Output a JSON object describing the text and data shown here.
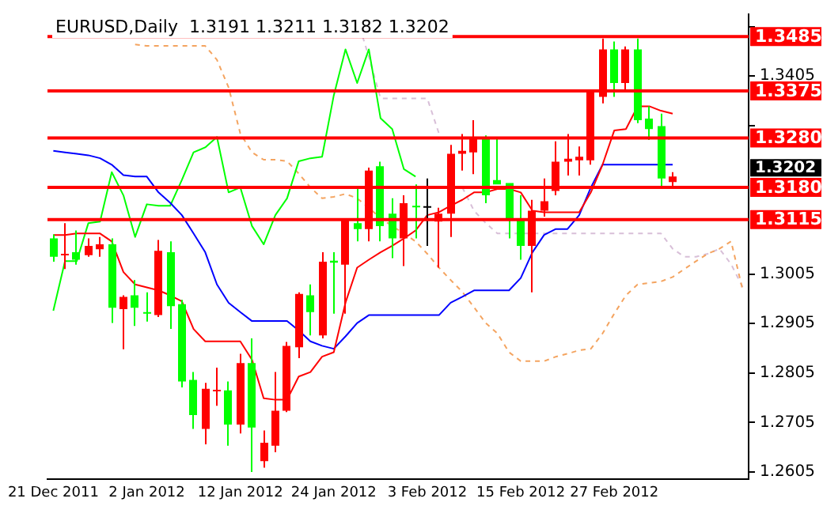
{
  "chart_data": {
    "type": "candlestick",
    "title": "EURUSD,Daily  1.3191 1.3211 1.3182 1.3202",
    "categories": [
      "21 Dec 2011",
      null,
      null,
      null,
      null,
      null,
      null,
      null,
      "2 Jan 2012",
      null,
      null,
      null,
      null,
      null,
      null,
      null,
      "12 Jan 2012",
      null,
      null,
      null,
      null,
      null,
      null,
      null,
      "24 Jan 2012",
      null,
      null,
      null,
      null,
      null,
      null,
      null,
      "3 Feb 2012",
      null,
      null,
      null,
      null,
      null,
      null,
      null,
      "15 Feb 2012",
      null,
      null,
      null,
      null,
      null,
      null,
      null,
      "27 Feb 2012",
      null,
      null,
      null,
      null,
      null,
      null,
      null,
      null,
      null,
      null,
      null
    ],
    "ohlc": [
      [
        1.3077,
        1.3085,
        1.303,
        1.304
      ],
      [
        1.3043,
        1.3108,
        1.3015,
        1.3046
      ],
      [
        1.3049,
        1.3093,
        1.3024,
        1.3034
      ],
      [
        1.3043,
        1.3077,
        1.304,
        1.3062
      ],
      [
        1.3055,
        1.308,
        1.304,
        1.3065
      ],
      [
        1.3065,
        1.3077,
        1.2906,
        1.2937
      ],
      [
        1.2934,
        1.2962,
        1.2853,
        1.2959
      ],
      [
        1.2962,
        1.2993,
        1.29,
        1.2937
      ],
      [
        1.2928,
        1.2968,
        1.2909,
        1.2925
      ],
      [
        1.2922,
        1.3074,
        1.2918,
        1.3052
      ],
      [
        1.3049,
        1.3071,
        1.2894,
        1.294
      ],
      [
        1.2944,
        1.2953,
        1.2776,
        1.2788
      ],
      [
        1.2791,
        1.2807,
        1.2692,
        1.272
      ],
      [
        1.2692,
        1.2785,
        1.2661,
        1.2773
      ],
      [
        1.2768,
        1.2816,
        1.2739,
        1.2771
      ],
      [
        1.277,
        1.2788,
        1.2658,
        1.2701
      ],
      [
        1.2701,
        1.2844,
        1.2683,
        1.2825
      ],
      [
        1.2825,
        1.2875,
        1.2605,
        1.2695
      ],
      [
        1.2627,
        1.2689,
        1.2614,
        1.2664
      ],
      [
        1.2658,
        1.2807,
        1.2645,
        1.2729
      ],
      [
        1.2729,
        1.2868,
        1.2726,
        1.286
      ],
      [
        1.2857,
        1.2968,
        1.2835,
        1.2965
      ],
      [
        1.2962,
        1.2984,
        1.2881,
        1.2928
      ],
      [
        1.2881,
        1.3049,
        1.2875,
        1.303
      ],
      [
        1.3032,
        1.3049,
        1.2925,
        1.3028
      ],
      [
        1.3024,
        1.3114,
        1.2925,
        1.3114
      ],
      [
        1.3108,
        1.318,
        1.3071,
        1.3096
      ],
      [
        1.3096,
        1.322,
        1.3071,
        1.3214
      ],
      [
        1.3223,
        1.3232,
        1.3071,
        1.3102
      ],
      [
        1.3127,
        1.3158,
        1.3037,
        1.3077
      ],
      [
        1.3077,
        1.3164,
        1.3021,
        1.3148
      ],
      [
        1.3143,
        1.3186,
        1.3077,
        1.314
      ],
      [
        1.3142,
        1.3198,
        1.3062,
        1.3142
      ],
      [
        1.3111,
        1.3139,
        1.3018,
        1.3127
      ],
      [
        1.3127,
        1.3266,
        1.308,
        1.3248
      ],
      [
        1.3248,
        1.3288,
        1.3214,
        1.3254
      ],
      [
        1.3251,
        1.3316,
        1.3207,
        1.3282
      ],
      [
        1.3279,
        1.3285,
        1.3148,
        1.3164
      ],
      [
        1.3195,
        1.3282,
        1.3186,
        1.3186
      ],
      [
        1.3189,
        1.3189,
        1.3077,
        1.3114
      ],
      [
        1.3114,
        1.3164,
        1.3034,
        1.3062
      ],
      [
        1.3062,
        1.3155,
        1.2968,
        1.3133
      ],
      [
        1.3133,
        1.3198,
        1.3121,
        1.3152
      ],
      [
        1.3173,
        1.3273,
        1.3164,
        1.3232
      ],
      [
        1.3232,
        1.3288,
        1.3204,
        1.3238
      ],
      [
        1.3235,
        1.3263,
        1.3204,
        1.3242
      ],
      [
        1.3235,
        1.3372,
        1.3226,
        1.3372
      ],
      [
        1.3363,
        1.3481,
        1.335,
        1.3459
      ],
      [
        1.3459,
        1.3475,
        1.3363,
        1.3391
      ],
      [
        1.3391,
        1.3465,
        1.3378,
        1.3459
      ],
      [
        1.3459,
        1.3481,
        1.331,
        1.3316
      ],
      [
        1.3319,
        1.3344,
        1.3276,
        1.3298
      ],
      [
        1.3304,
        1.3329,
        1.318,
        1.3198
      ],
      [
        1.3191,
        1.3211,
        1.3182,
        1.3202
      ],
      null,
      null,
      null,
      null,
      null,
      null
    ],
    "colors": [
      "#00ff00",
      "#ff0000",
      "#00ff00",
      "#ff0000",
      "#ff0000",
      "#00ff00",
      "#ff0000",
      "#00ff00",
      "#00ff00",
      "#ff0000",
      "#00ff00",
      "#00ff00",
      "#00ff00",
      "#ff0000",
      "#ff0000",
      "#00ff00",
      "#ff0000",
      "#00ff00",
      "#ff0000",
      "#ff0000",
      "#ff0000",
      "#ff0000",
      "#00ff00",
      "#ff0000",
      "#00ff00",
      "#ff0000",
      "#00ff00",
      "#ff0000",
      "#00ff00",
      "#00ff00",
      "#ff0000",
      "#00ff00",
      "#000000",
      "#ff0000",
      "#ff0000",
      "#ff0000",
      "#ff0000",
      "#00ff00",
      "#00ff00",
      "#00ff00",
      "#00ff00",
      "#ff0000",
      "#ff0000",
      "#ff0000",
      "#ff0000",
      "#ff0000",
      "#ff0000",
      "#ff0000",
      "#00ff00",
      "#ff0000",
      "#00ff00",
      "#00ff00",
      "#00ff00",
      "#ff0000",
      null,
      null,
      null,
      null,
      null,
      null
    ],
    "series": [
      {
        "type": "line",
        "color": "#ff0000",
        "values": [
          1.3084,
          1.3084,
          1.3087,
          1.3087,
          1.3087,
          1.3071,
          1.3009,
          1.2984,
          1.2978,
          1.2972,
          1.2962,
          1.295,
          1.2894,
          1.2869,
          1.2869,
          1.2869,
          1.2869,
          1.2832,
          1.2754,
          1.2751,
          1.2751,
          1.2798,
          1.2807,
          1.2838,
          1.2847,
          1.2947,
          1.3018,
          1.3034,
          1.3049,
          1.3062,
          1.3077,
          1.3093,
          1.3124,
          1.313,
          1.3143,
          1.3155,
          1.317,
          1.317,
          1.3177,
          1.3177,
          1.317,
          1.3133,
          1.313,
          1.313,
          1.313,
          1.313,
          1.317,
          1.3226,
          1.3295,
          1.3298,
          1.3344,
          1.3344,
          1.3335,
          1.3329,
          null,
          null,
          null,
          null,
          null,
          null
        ]
      },
      {
        "type": "line",
        "color": "#0000ff",
        "values": [
          1.3254,
          1.3251,
          1.3248,
          1.3245,
          1.3239,
          1.3226,
          1.3205,
          1.3202,
          1.3202,
          1.317,
          1.3149,
          1.3124,
          1.3087,
          1.3049,
          1.2984,
          1.2947,
          1.2928,
          1.291,
          1.291,
          1.291,
          1.291,
          1.2891,
          1.2869,
          1.286,
          1.2854,
          1.2879,
          1.2906,
          1.2922,
          1.2922,
          1.2922,
          1.2922,
          1.2922,
          1.2922,
          1.2922,
          1.2947,
          1.2959,
          1.2972,
          1.2972,
          1.2972,
          1.2972,
          1.2997,
          1.3049,
          1.3084,
          1.3096,
          1.3096,
          1.3124,
          1.318,
          1.3226,
          1.3226,
          1.3226,
          1.3226,
          1.3226,
          1.3226,
          1.3226,
          null,
          null,
          null,
          null,
          null,
          null
        ]
      },
      {
        "type": "line",
        "color": "#00ff00",
        "values": [
          1.2931,
          1.3031,
          1.3031,
          1.3108,
          1.3111,
          1.3211,
          1.3164,
          1.308,
          1.3146,
          1.3143,
          1.3143,
          1.3195,
          1.3251,
          1.3261,
          1.3282,
          1.317,
          1.318,
          1.3102,
          1.3065,
          1.3124,
          1.3158,
          1.3233,
          1.3239,
          1.3242,
          1.3366,
          1.3459,
          1.3391,
          1.3459,
          1.332,
          1.3298,
          1.3217,
          1.3202,
          null,
          null,
          null,
          null,
          null,
          null,
          null,
          null,
          null,
          null,
          null,
          null,
          null,
          null,
          null,
          null,
          null,
          null,
          null,
          null,
          null,
          null,
          null,
          null,
          null,
          null,
          null,
          null
        ]
      },
      {
        "type": "line",
        "color": "#f4a460",
        "line_style": "dashed",
        "values": [
          null,
          null,
          null,
          null,
          null,
          null,
          null,
          1.3469,
          1.3466,
          1.3466,
          1.3466,
          1.3466,
          1.3466,
          1.3466,
          1.3438,
          1.3382,
          1.3289,
          1.3251,
          1.3236,
          1.3236,
          1.3233,
          1.3208,
          1.318,
          1.3158,
          1.3161,
          1.3167,
          1.3158,
          1.3139,
          1.3118,
          1.3102,
          1.3087,
          1.3071,
          1.3046,
          1.3018,
          1.2993,
          1.2969,
          1.2938,
          1.2906,
          1.2885,
          1.2847,
          1.2829,
          1.2829,
          1.2829,
          1.2838,
          1.2844,
          1.2851,
          1.2854,
          1.2885,
          1.2925,
          1.2962,
          1.2984,
          1.2987,
          1.299,
          1.2999,
          1.3015,
          1.3031,
          1.3046,
          1.3056,
          1.3071,
          1.2972
        ]
      },
      {
        "type": "line",
        "color": "#d8bfd8",
        "line_style": "dashed",
        "values": [
          null,
          null,
          null,
          null,
          null,
          null,
          null,
          null,
          null,
          null,
          null,
          null,
          null,
          null,
          null,
          null,
          null,
          null,
          null,
          null,
          null,
          null,
          null,
          null,
          null,
          null,
          1.3521,
          1.3444,
          1.336,
          1.336,
          1.336,
          1.336,
          1.336,
          1.3289,
          null,
          1.318,
          1.3133,
          1.3108,
          1.3087,
          1.3087,
          1.3087,
          1.3087,
          1.3087,
          1.3087,
          1.3087,
          1.3087,
          1.3087,
          1.3087,
          1.3087,
          1.3087,
          1.3087,
          1.3087,
          1.3087,
          1.3056,
          1.304,
          1.304,
          1.3046,
          1.3056,
          1.3025,
          1.2978
        ]
      }
    ],
    "ylim": [
      1.259,
      1.353
    ],
    "yticks": [
      1.2605,
      1.2705,
      1.2805,
      1.2905,
      1.3005,
      {
        "value": 1.3305,
        "label": null
      },
      1.3405,
      {
        "value": 1.3505,
        "label": null
      }
    ],
    "ref_lines": [
      {
        "axis": "y",
        "value": 1.3485,
        "label": "1.3485",
        "color": "#ff0000",
        "line_style": "solid"
      },
      {
        "axis": "y",
        "value": 1.3375,
        "label": "1.3375",
        "color": "#ff0000",
        "line_style": "solid"
      },
      {
        "axis": "y",
        "value": 1.328,
        "label": "1.3280",
        "color": "#ff0000",
        "line_style": "solid"
      },
      {
        "axis": "y",
        "value": 1.318,
        "label": "1.3180",
        "color": "#ff0000",
        "line_style": "solid"
      },
      {
        "axis": "y",
        "value": 1.3115,
        "label": "1.3115",
        "color": "#ff0000",
        "line_style": "solid"
      }
    ],
    "annotations": [
      "1.3202"
    ],
    "grid": false,
    "legend": false,
    "marker": "none"
  }
}
